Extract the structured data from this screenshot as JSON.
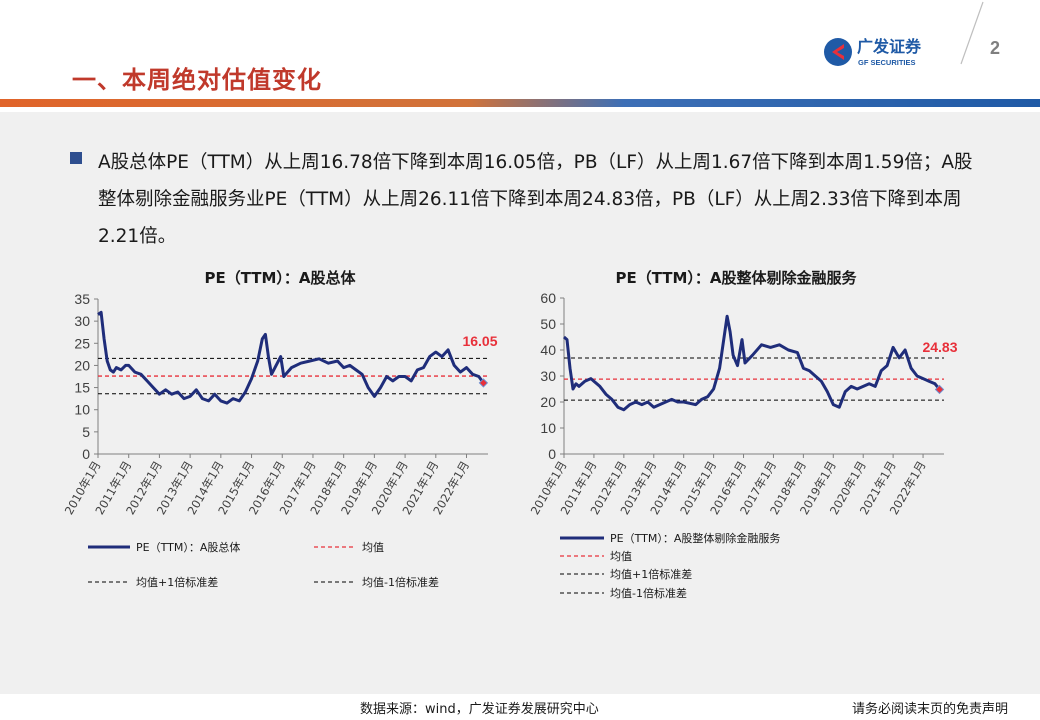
{
  "header": {
    "title": "一、本周绝对估值变化",
    "page_number": "2",
    "logo_text_cn": "广发证券",
    "logo_text_en": "GF SECURITIES"
  },
  "summary": {
    "text": "A股总体PE（TTM）从上周16.78倍下降到本周16.05倍，PB（LF）从上周1.67倍下降到本周1.59倍；A股整体剔除金融服务业PE（TTM）从上周26.11倍下降到本周24.83倍，PB（LF）从上周2.33倍下降到本周2.21倍。"
  },
  "footer": {
    "source": "数据来源：wind，广发证券发展研究中心",
    "disclaimer": "请务必阅读末页的免责声明"
  },
  "colors": {
    "title": "#c0392b",
    "series": "#1f2d7a",
    "mean": "#e8303a",
    "std": "#000000",
    "bullet": "#2e4e8f",
    "panel": "#f0f0f0"
  },
  "chart_data": [
    {
      "type": "line",
      "title": "PE（TTM）：A股总体",
      "ylim": [
        0,
        35
      ],
      "yticks": [
        0,
        5,
        10,
        15,
        20,
        25,
        30,
        35
      ],
      "xlim": [
        2010.0,
        2022.7
      ],
      "xticks": [
        "2010年1月",
        "2011年1月",
        "2012年1月",
        "2013年1月",
        "2014年1月",
        "2015年1月",
        "2016年1月",
        "2017年1月",
        "2018年1月",
        "2019年1月",
        "2020年1月",
        "2021年1月",
        "2022年1月"
      ],
      "mean": 17.6,
      "upper": 21.6,
      "lower": 13.6,
      "last_value_label": "16.05",
      "legend": [
        "PE（TTM）：A股总体",
        "均值",
        "均值+1倍标准差",
        "均值-1倍标准差"
      ],
      "legend_layout": "grid",
      "series": [
        {
          "name": "PE（TTM）：A股总体",
          "x": [
            2010.0,
            2010.1,
            2010.2,
            2010.3,
            2010.4,
            2010.5,
            2010.6,
            2010.75,
            2010.9,
            2011.0,
            2011.2,
            2011.4,
            2011.6,
            2011.8,
            2012.0,
            2012.2,
            2012.4,
            2012.6,
            2012.8,
            2013.0,
            2013.2,
            2013.4,
            2013.6,
            2013.8,
            2014.0,
            2014.2,
            2014.4,
            2014.6,
            2014.8,
            2015.0,
            2015.2,
            2015.35,
            2015.45,
            2015.55,
            2015.65,
            2015.8,
            2015.95,
            2016.05,
            2016.3,
            2016.6,
            2016.9,
            2017.2,
            2017.5,
            2017.8,
            2018.0,
            2018.2,
            2018.4,
            2018.6,
            2018.8,
            2019.0,
            2019.2,
            2019.4,
            2019.6,
            2019.8,
            2020.0,
            2020.2,
            2020.4,
            2020.6,
            2020.8,
            2021.0,
            2021.2,
            2021.4,
            2021.6,
            2021.8,
            2022.0,
            2022.2,
            2022.4,
            2022.55
          ],
          "y": [
            31.5,
            32,
            26,
            21,
            19,
            18.5,
            19.5,
            19,
            20,
            20,
            18.5,
            18,
            16.5,
            15,
            13.5,
            14.5,
            13.5,
            14,
            12.5,
            13,
            14.5,
            12.5,
            12,
            13.5,
            12,
            11.5,
            12.5,
            12,
            14,
            17,
            21,
            26,
            27,
            22,
            18,
            20,
            22,
            17.5,
            19.5,
            20.5,
            21,
            21.5,
            20.5,
            21,
            19.5,
            20,
            19,
            18,
            15,
            13,
            15,
            17.5,
            16.5,
            17.5,
            17.5,
            16.5,
            19,
            19.5,
            22,
            23,
            22,
            23.5,
            20,
            18.5,
            19.5,
            18,
            17.5,
            16.05
          ]
        }
      ]
    },
    {
      "type": "line",
      "title": "PE（TTM）：A股整体剔除金融服务",
      "ylim": [
        0,
        60
      ],
      "yticks": [
        0,
        10,
        20,
        30,
        40,
        50,
        60
      ],
      "xlim": [
        2010.0,
        2022.7
      ],
      "xticks": [
        "2010年1月",
        "2011年1月",
        "2012年1月",
        "2013年1月",
        "2014年1月",
        "2015年1月",
        "2016年1月",
        "2017年1月",
        "2018年1月",
        "2019年1月",
        "2020年1月",
        "2021年1月",
        "2022年1月"
      ],
      "mean": 28.8,
      "upper": 36.9,
      "lower": 20.7,
      "last_value_label": "24.83",
      "legend": [
        "PE（TTM）：A股整体剔除金融服务",
        "均值",
        "均值+1倍标准差",
        "均值-1倍标准差"
      ],
      "legend_layout": "stacked",
      "series": [
        {
          "name": "PE（TTM）：A股整体剔除金融服务",
          "x": [
            2010.0,
            2010.1,
            2010.2,
            2010.3,
            2010.4,
            2010.5,
            2010.7,
            2010.9,
            2011.0,
            2011.2,
            2011.4,
            2011.6,
            2011.8,
            2012.0,
            2012.2,
            2012.4,
            2012.6,
            2012.8,
            2013.0,
            2013.2,
            2013.4,
            2013.6,
            2013.8,
            2014.0,
            2014.2,
            2014.4,
            2014.6,
            2014.8,
            2015.0,
            2015.2,
            2015.35,
            2015.45,
            2015.55,
            2015.65,
            2015.8,
            2015.95,
            2016.05,
            2016.3,
            2016.6,
            2016.9,
            2017.2,
            2017.5,
            2017.8,
            2018.0,
            2018.2,
            2018.4,
            2018.6,
            2018.8,
            2019.0,
            2019.2,
            2019.4,
            2019.6,
            2019.8,
            2020.0,
            2020.2,
            2020.4,
            2020.6,
            2020.8,
            2021.0,
            2021.2,
            2021.4,
            2021.6,
            2021.8,
            2022.0,
            2022.2,
            2022.4,
            2022.55
          ],
          "y": [
            45,
            44,
            33,
            25,
            27,
            26,
            28,
            29,
            28,
            26,
            23,
            21,
            18,
            17,
            19,
            20,
            19,
            20,
            18,
            19,
            20,
            21,
            20,
            20,
            19.5,
            19,
            21,
            22,
            25,
            33,
            45,
            53,
            47,
            38,
            34,
            44,
            35,
            38,
            42,
            41,
            42,
            40,
            39,
            33,
            32,
            30,
            28,
            24,
            19,
            18,
            24,
            26,
            25,
            26,
            27,
            26,
            32,
            34,
            41,
            37,
            40,
            33,
            30,
            29,
            28,
            27,
            24.83
          ]
        }
      ]
    }
  ]
}
